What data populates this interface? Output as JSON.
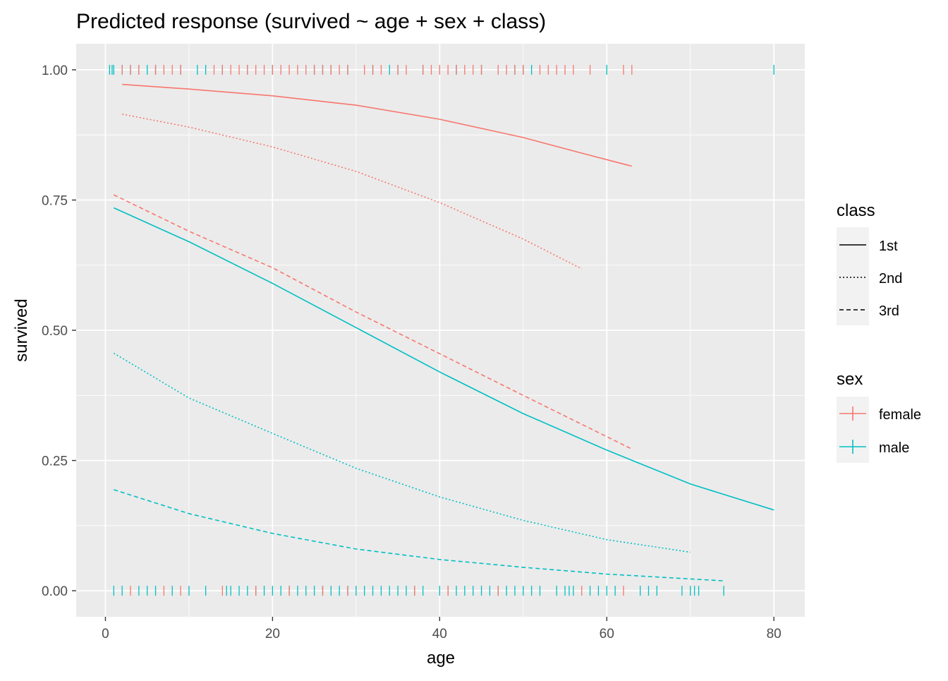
{
  "chart_data": {
    "type": "line",
    "title": "Predicted response (survived ~ age + sex + class)",
    "xlabel": "age",
    "ylabel": "survived",
    "xlim": [
      -3.5,
      83.7
    ],
    "ylim": [
      -0.05,
      1.05
    ],
    "x_ticks": [
      0,
      20,
      40,
      60,
      80
    ],
    "x_tick_labels": [
      "0",
      "20",
      "40",
      "60",
      "80"
    ],
    "y_ticks": [
      0,
      0.25,
      0.5,
      0.75,
      1.0
    ],
    "y_tick_labels": [
      "0.00",
      "0.25",
      "0.50",
      "0.75",
      "1.00"
    ],
    "grid": true,
    "legend_position": "right",
    "legends": [
      {
        "title": "class",
        "items": [
          {
            "label": "1st",
            "linetype": "solid"
          },
          {
            "label": "2nd",
            "linetype": "dotted"
          },
          {
            "label": "3rd",
            "linetype": "dashed"
          }
        ]
      },
      {
        "title": "sex",
        "items": [
          {
            "label": "female",
            "color": "#F8766D"
          },
          {
            "label": "male",
            "color": "#00BFC4"
          }
        ]
      }
    ],
    "colors": {
      "female": "#F8766D",
      "male": "#00BFC4",
      "panel": "#EBEBEB",
      "grid": "#FFFFFF"
    },
    "series": [
      {
        "sex": "female",
        "class": "1st",
        "x": [
          2,
          10,
          20,
          30,
          40,
          50,
          57,
          63
        ],
        "y": [
          0.972,
          0.963,
          0.95,
          0.932,
          0.905,
          0.87,
          0.84,
          0.815
        ]
      },
      {
        "sex": "female",
        "class": "2nd",
        "x": [
          2,
          10,
          20,
          30,
          40,
          50,
          57
        ],
        "y": [
          0.915,
          0.89,
          0.852,
          0.805,
          0.745,
          0.675,
          0.618
        ]
      },
      {
        "sex": "female",
        "class": "3rd",
        "x": [
          1,
          10,
          20,
          30,
          40,
          50,
          63
        ],
        "y": [
          0.76,
          0.69,
          0.62,
          0.535,
          0.455,
          0.375,
          0.272
        ]
      },
      {
        "sex": "male",
        "class": "1st",
        "x": [
          1,
          10,
          20,
          30,
          40,
          50,
          60,
          70,
          80
        ],
        "y": [
          0.735,
          0.67,
          0.59,
          0.505,
          0.42,
          0.34,
          0.27,
          0.205,
          0.155
        ]
      },
      {
        "sex": "male",
        "class": "2nd",
        "x": [
          1,
          10,
          20,
          30,
          40,
          50,
          60,
          70
        ],
        "y": [
          0.456,
          0.37,
          0.302,
          0.235,
          0.18,
          0.135,
          0.098,
          0.074
        ]
      },
      {
        "sex": "male",
        "class": "3rd",
        "x": [
          1,
          10,
          20,
          30,
          40,
          50,
          60,
          74
        ],
        "y": [
          0.194,
          0.148,
          0.11,
          0.08,
          0.06,
          0.045,
          0.032,
          0.019
        ]
      }
    ],
    "rug": {
      "top_female": [
        2,
        3,
        4,
        6,
        7,
        8,
        9,
        13,
        14,
        15,
        16,
        17,
        18,
        19,
        20,
        21,
        22,
        23,
        24,
        25,
        26,
        27,
        28,
        29,
        31,
        32,
        33,
        35,
        36,
        38,
        39,
        40,
        41,
        42,
        43,
        44,
        45,
        47,
        48,
        49,
        50,
        52,
        53,
        54,
        55,
        56,
        58,
        62,
        63
      ],
      "top_male": [
        0.5,
        0.8,
        1,
        2,
        3,
        4,
        5,
        6,
        9,
        11,
        12,
        14,
        17,
        20,
        25,
        26,
        27,
        29,
        32,
        34,
        35,
        38,
        42,
        45,
        49,
        50,
        51,
        60,
        80
      ],
      "bottom_female": [
        3,
        7,
        9,
        14,
        18,
        22,
        26,
        29,
        37,
        41,
        47,
        57,
        62
      ],
      "bottom_male": [
        1,
        2,
        4,
        5,
        6,
        8,
        10,
        12,
        14.5,
        15,
        16,
        17,
        18,
        19,
        20,
        21,
        22,
        23,
        24,
        25,
        26,
        27,
        28,
        29,
        30,
        31,
        32,
        33,
        34,
        35,
        36,
        37,
        38,
        40,
        41,
        42,
        43,
        44,
        45,
        46,
        47,
        48,
        49,
        50,
        51,
        52,
        54,
        55,
        55.5,
        56,
        58,
        59,
        60,
        61,
        64,
        65,
        66,
        69,
        70,
        70.5,
        71,
        74
      ]
    }
  }
}
